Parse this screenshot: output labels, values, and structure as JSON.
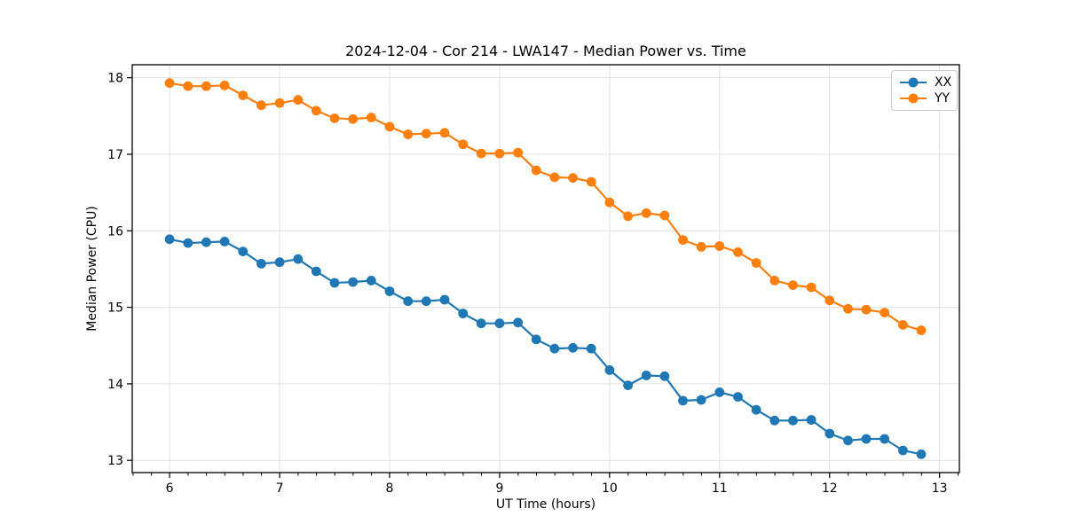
{
  "chart_data": {
    "type": "line",
    "title": "2024-12-04 - Cor 214 - LWA147 - Median Power vs. Time",
    "xlabel": "UT Time (hours)",
    "ylabel": "Median Power (CPU)",
    "xlim": [
      5.66,
      13.18
    ],
    "ylim": [
      12.84,
      18.17
    ],
    "x_ticks": [
      6,
      7,
      8,
      9,
      10,
      11,
      12,
      13
    ],
    "y_ticks": [
      13,
      14,
      15,
      16,
      17,
      18
    ],
    "x_minor_tick_step": 0.1667,
    "grid": true,
    "grid_color": "#e0e0e0",
    "legend_position": "upper right",
    "x": [
      6.0,
      6.167,
      6.333,
      6.5,
      6.667,
      6.833,
      7.0,
      7.167,
      7.333,
      7.5,
      7.667,
      7.833,
      8.0,
      8.167,
      8.333,
      8.5,
      8.667,
      8.833,
      9.0,
      9.167,
      9.333,
      9.5,
      9.667,
      9.833,
      10.0,
      10.167,
      10.333,
      10.5,
      10.667,
      10.833,
      11.0,
      11.167,
      11.333,
      11.5,
      11.667,
      11.833,
      12.0,
      12.167,
      12.333,
      12.5,
      12.667,
      12.833
    ],
    "series": [
      {
        "name": "XX",
        "color": "#1f77b4",
        "values": [
          15.89,
          15.84,
          15.85,
          15.86,
          15.73,
          15.57,
          15.59,
          15.63,
          15.47,
          15.32,
          15.33,
          15.35,
          15.21,
          15.08,
          15.08,
          15.1,
          14.92,
          14.79,
          14.79,
          14.8,
          14.58,
          14.46,
          14.47,
          14.46,
          14.18,
          13.98,
          14.11,
          14.1,
          13.78,
          13.79,
          13.89,
          13.83,
          13.66,
          13.52,
          13.52,
          13.53,
          13.35,
          13.26,
          13.28,
          13.28,
          13.13,
          13.08
        ]
      },
      {
        "name": "YY",
        "color": "#ff7f0e",
        "values": [
          17.93,
          17.89,
          17.89,
          17.9,
          17.77,
          17.64,
          17.67,
          17.71,
          17.57,
          17.47,
          17.46,
          17.48,
          17.36,
          17.26,
          17.27,
          17.28,
          17.13,
          17.01,
          17.01,
          17.02,
          16.79,
          16.7,
          16.69,
          16.64,
          16.37,
          16.19,
          16.23,
          16.2,
          15.88,
          15.79,
          15.8,
          15.72,
          15.58,
          15.35,
          15.29,
          15.26,
          15.09,
          14.98,
          14.97,
          14.93,
          14.77,
          14.7
        ]
      }
    ]
  }
}
